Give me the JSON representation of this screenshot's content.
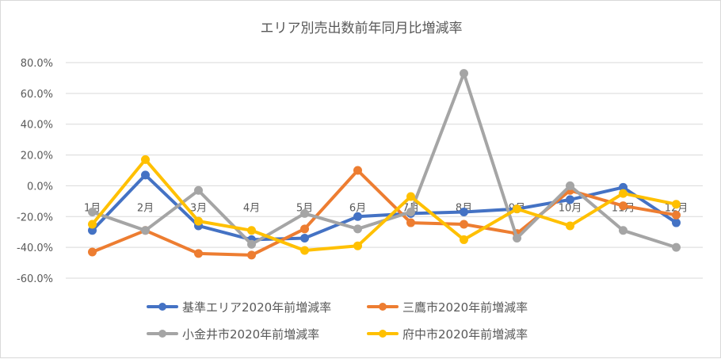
{
  "chart_data": {
    "type": "line",
    "title": "エリア別売出数前年同月比増減率",
    "xlabel": "",
    "ylabel": "",
    "categories": [
      "1月",
      "2月",
      "3月",
      "4月",
      "5月",
      "6月",
      "7月",
      "8月",
      "9月",
      "10月",
      "11月",
      "12月"
    ],
    "ylim": [
      -60,
      80
    ],
    "yticks": [
      80,
      60,
      40,
      20,
      0,
      -20,
      -40,
      -60
    ],
    "ytick_labels": [
      "80.0%",
      "60.0%",
      "40.0%",
      "20.0%",
      "0.0%",
      "-20.0%",
      "-40.0%",
      "-60.0%"
    ],
    "grid": true,
    "legend_position": "bottom",
    "series": [
      {
        "name": "基準エリア2020年前増減率",
        "color": "#4472C4",
        "values": [
          -29,
          7,
          -26,
          -35,
          -34,
          -20,
          -18,
          -17,
          -15,
          -9,
          -1,
          -24
        ]
      },
      {
        "name": "三鷹市2020年前増減率",
        "color": "#ED7D31",
        "values": [
          -43,
          -29,
          -44,
          -45,
          -28,
          10,
          -24,
          -25,
          -31,
          -3,
          -13,
          -19
        ]
      },
      {
        "name": "小金井市2020年前増減率",
        "color": "#A5A5A5",
        "values": [
          -17,
          -29,
          -3,
          -38,
          -18,
          -28,
          -17,
          73,
          -34,
          0,
          -29,
          -40
        ]
      },
      {
        "name": "府中市2020年前増減率",
        "color": "#FFC000",
        "values": [
          -25,
          17,
          -23,
          -29,
          -42,
          -39,
          -7,
          -35,
          -15,
          -26,
          -5,
          -12
        ]
      }
    ]
  }
}
